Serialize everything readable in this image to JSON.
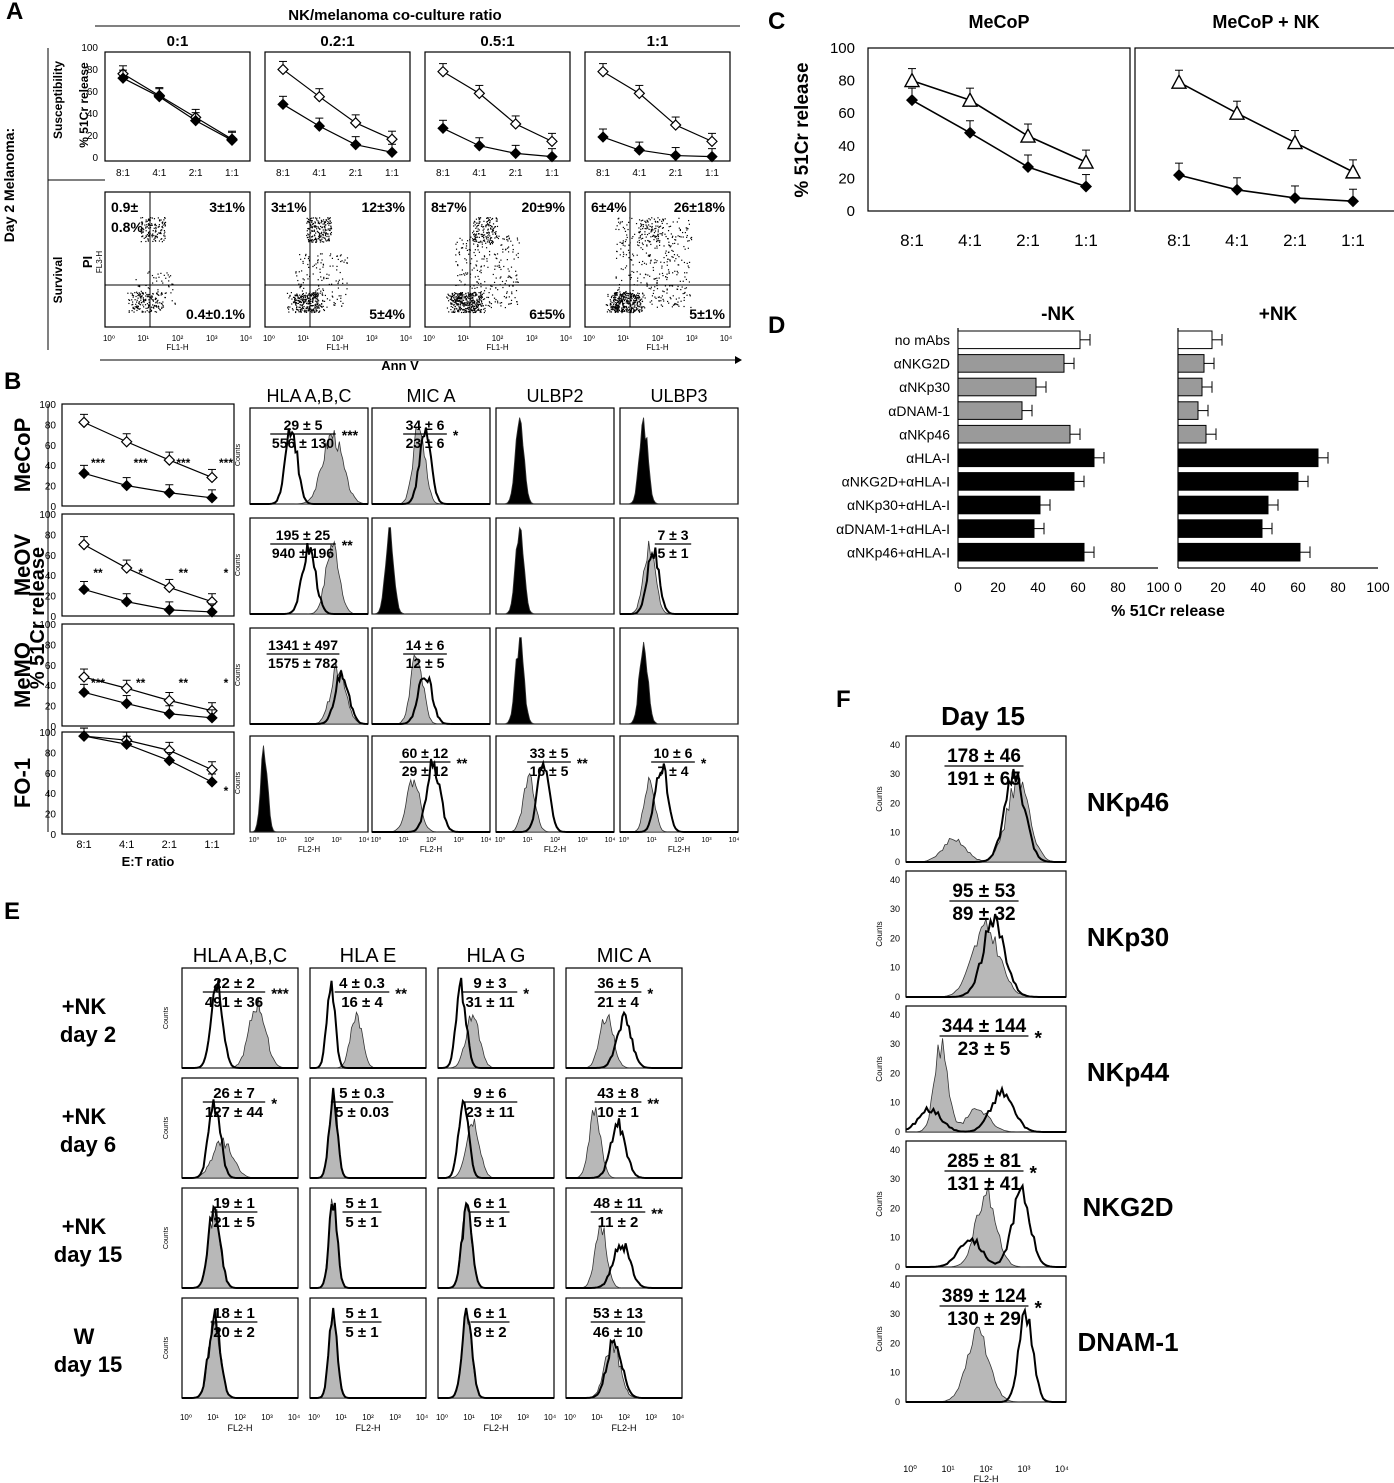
{
  "panel_letters": {
    "A": "A",
    "B": "B",
    "C": "C",
    "D": "D",
    "E": "E",
    "F": "F"
  },
  "panel_a": {
    "header": "NK/melanoma co-culture ratio",
    "ratios": [
      "0:1",
      "0.2:1",
      "0.5:1",
      "1:1"
    ],
    "row_side": "Day 2 Melanoma:",
    "row1_label": "Susceptibility",
    "row2_label": "Survival",
    "ylabel": "% 51Cr release",
    "yticks": [
      "0",
      "20",
      "40",
      "60",
      "80",
      "100"
    ],
    "xticks": [
      "8:1",
      "4:1",
      "2:1",
      "1:1"
    ],
    "flow_ylabel": "PI",
    "flow_ylabel_small": "FL3-H",
    "flow_xlabel_small": "FL1-H",
    "xaxis_title": "Ann V",
    "quadrants": [
      {
        "ul": "0.9±",
        "ul2": "0.8%",
        "ur": "3±1%",
        "lr": "0.4±0.1%"
      },
      {
        "ul": "3±1%",
        "ul2": "",
        "ur": "12±3%",
        "lr": "5±4%"
      },
      {
        "ul": "8±7%",
        "ul2": "",
        "ur": "20±9%",
        "lr": "6±5%"
      },
      {
        "ul": "6±4%",
        "ul2": "",
        "ur": "26±18%",
        "lr": "5±1%"
      }
    ]
  },
  "chart_data": [
    {
      "type": "line",
      "panel": "A",
      "subtitle": "0:1",
      "categories": [
        "8:1",
        "4:1",
        "2:1",
        "1:1"
      ],
      "ylim": [
        0,
        100
      ],
      "series": [
        {
          "values": [
            80,
            60,
            40,
            20
          ]
        },
        {
          "values": [
            76,
            59,
            37,
            19
          ]
        }
      ]
    },
    {
      "type": "line",
      "panel": "A",
      "subtitle": "0.2:1",
      "categories": [
        "8:1",
        "4:1",
        "2:1",
        "1:1"
      ],
      "ylim": [
        0,
        100
      ],
      "series": [
        {
          "values": [
            84,
            59,
            35,
            20
          ]
        },
        {
          "values": [
            52,
            32,
            15,
            8
          ]
        }
      ]
    },
    {
      "type": "line",
      "panel": "A",
      "subtitle": "0.5:1",
      "categories": [
        "8:1",
        "4:1",
        "2:1",
        "1:1"
      ],
      "ylim": [
        0,
        100
      ],
      "series": [
        {
          "values": [
            82,
            62,
            34,
            18
          ]
        },
        {
          "values": [
            30,
            14,
            7,
            4
          ]
        }
      ]
    },
    {
      "type": "line",
      "panel": "A",
      "subtitle": "1:1",
      "categories": [
        "8:1",
        "4:1",
        "2:1",
        "1:1"
      ],
      "ylim": [
        0,
        100
      ],
      "series": [
        {
          "values": [
            82,
            62,
            33,
            18
          ]
        },
        {
          "values": [
            22,
            10,
            5,
            4
          ]
        }
      ]
    },
    {
      "type": "line",
      "panel": "B",
      "subtitle": "MeCoP",
      "categories": [
        "8:1",
        "4:1",
        "2:1",
        "1:1"
      ],
      "ylim": [
        0,
        100
      ],
      "series": [
        {
          "values": [
            82,
            63,
            45,
            28
          ]
        },
        {
          "values": [
            32,
            20,
            13,
            8
          ]
        }
      ]
    },
    {
      "type": "line",
      "panel": "B",
      "subtitle": "MeOV",
      "categories": [
        "8:1",
        "4:1",
        "2:1",
        "1:1"
      ],
      "ylim": [
        0,
        100
      ],
      "series": [
        {
          "values": [
            70,
            47,
            28,
            14
          ]
        },
        {
          "values": [
            26,
            14,
            6,
            4
          ]
        }
      ]
    },
    {
      "type": "line",
      "panel": "B",
      "subtitle": "MeMO",
      "categories": [
        "8:1",
        "4:1",
        "2:1",
        "1:1"
      ],
      "ylim": [
        0,
        100
      ],
      "series": [
        {
          "values": [
            48,
            37,
            25,
            15
          ]
        },
        {
          "values": [
            33,
            22,
            12,
            8
          ]
        }
      ]
    },
    {
      "type": "line",
      "panel": "B",
      "subtitle": "FO-1",
      "categories": [
        "8:1",
        "4:1",
        "2:1",
        "1:1"
      ],
      "ylim": [
        0,
        100
      ],
      "series": [
        {
          "values": [
            96,
            92,
            82,
            63
          ]
        },
        {
          "values": [
            96,
            88,
            72,
            51
          ]
        }
      ]
    },
    {
      "type": "line",
      "panel": "C",
      "title": "MeCoP",
      "categories": [
        "8:1",
        "4:1",
        "2:1",
        "1:1"
      ],
      "ylim": [
        0,
        100
      ],
      "ylabel": "% 51Cr release",
      "series": [
        {
          "values": [
            80,
            68,
            46,
            30
          ]
        },
        {
          "values": [
            68,
            48,
            27,
            15
          ]
        }
      ]
    },
    {
      "type": "line",
      "panel": "C",
      "title": "MeCoP + NK",
      "categories": [
        "8:1",
        "4:1",
        "2:1",
        "1:1"
      ],
      "ylim": [
        0,
        100
      ],
      "series": [
        {
          "values": [
            79,
            60,
            42,
            24
          ]
        },
        {
          "values": [
            22,
            13,
            8,
            6
          ]
        }
      ]
    },
    {
      "type": "bar",
      "panel": "D",
      "title": "-NK",
      "categories": [
        "no mAbs",
        "αNKG2D",
        "αNKp30",
        "αDNAM-1",
        "αNKp46",
        "αHLA-I",
        "αNKG2D+αHLA-I",
        "αNKp30+αHLA-I",
        "αDNAM-1+αHLA-I",
        "αNKp46+αHLA-I"
      ],
      "values": [
        61,
        53,
        39,
        32,
        56,
        68,
        58,
        41,
        38,
        63
      ],
      "xlabel": "% 51Cr release",
      "xlim": [
        0,
        100
      ]
    },
    {
      "type": "bar",
      "panel": "D",
      "title": "+NK",
      "categories": [
        "no mAbs",
        "αNKG2D",
        "αNKp30",
        "αDNAM-1",
        "αNKp46",
        "αHLA-I",
        "αNKG2D+αHLA-I",
        "αNKp30+αHLA-I",
        "αDNAM-1+αHLA-I",
        "αNKp46+αHLA-I"
      ],
      "values": [
        17,
        13,
        12,
        10,
        14,
        70,
        60,
        45,
        42,
        61
      ],
      "xlim": [
        0,
        100
      ]
    }
  ],
  "panel_b": {
    "rows": [
      "MeCoP",
      "MeOV",
      "MeMO",
      "FO-1"
    ],
    "cols": [
      "HLA A,B,C",
      "MIC A",
      "ULBP2",
      "ULBP3"
    ],
    "ylabel": "% 51Cr release",
    "xlabel": "E:T ratio",
    "yticks": [
      "0",
      "20",
      "40",
      "60",
      "80",
      "100"
    ],
    "xticks": [
      "8:1",
      "4:1",
      "2:1",
      "1:1"
    ],
    "stars": [
      [
        "***",
        "***",
        "***",
        "***"
      ],
      [
        "**",
        "*",
        "**",
        "*"
      ],
      [
        "***",
        "**",
        "**",
        "*"
      ],
      [
        "",
        "",
        "",
        "*"
      ]
    ],
    "counts_label": "Counts",
    "fl2_label": "FL2-H",
    "hist": [
      [
        {
          "top": "29 ± 5",
          "bot": "556 ± 130",
          "sig": "***"
        },
        {
          "top": "34 ± 6",
          "bot": "23 ± 6",
          "sig": "*"
        },
        {
          "top": "",
          "bot": "",
          "sig": ""
        },
        {
          "top": "",
          "bot": "",
          "sig": ""
        }
      ],
      [
        {
          "top": "195 ± 25",
          "bot": "940 ± 196",
          "sig": "**"
        },
        {
          "top": "",
          "bot": "",
          "sig": ""
        },
        {
          "top": "",
          "bot": "",
          "sig": ""
        },
        {
          "top": "7 ± 3",
          "bot": "5 ± 1",
          "sig": ""
        }
      ],
      [
        {
          "top": "1341 ± 497",
          "bot": "1575 ± 782",
          "sig": ""
        },
        {
          "top": "14 ± 6",
          "bot": "12 ± 5",
          "sig": ""
        },
        {
          "top": "",
          "bot": "",
          "sig": ""
        },
        {
          "top": "",
          "bot": "",
          "sig": ""
        }
      ],
      [
        {
          "top": "",
          "bot": "",
          "sig": ""
        },
        {
          "top": "60 ± 12",
          "bot": "29 ± 12",
          "sig": "**"
        },
        {
          "top": "33 ± 5",
          "bot": "16 ± 5",
          "sig": "**"
        },
        {
          "top": "10 ± 6",
          "bot": "7 ± 4",
          "sig": "*"
        }
      ]
    ]
  },
  "panel_c": {
    "xticks": [
      "8:1",
      "4:1",
      "2:1",
      "1:1"
    ],
    "yticks": [
      "0",
      "20",
      "40",
      "60",
      "80",
      "100"
    ],
    "ylabel": "% 51Cr release",
    "titles": [
      "MeCoP",
      "MeCoP + NK"
    ]
  },
  "panel_d": {
    "titles": [
      "-NK",
      "+NK"
    ],
    "xticks": [
      "0",
      "20",
      "40",
      "60",
      "80",
      "100"
    ],
    "xlabel": "% 51Cr release",
    "labels": [
      "no mAbs",
      "αNKG2D",
      "αNKp30",
      "αDNAM-1",
      "αNKp46",
      "αHLA-I",
      "αNKG2D+αHLA-I",
      "αNKp30+αHLA-I",
      "αDNAM-1+αHLA-I",
      "αNKp46+αHLA-I"
    ]
  },
  "panel_e": {
    "cols": [
      "HLA A,B,C",
      "HLA E",
      "HLA G",
      "MIC A"
    ],
    "rows": [
      {
        "l1": "+NK",
        "l2": "day 2"
      },
      {
        "l1": "+NK",
        "l2": "day 6"
      },
      {
        "l1": "+NK",
        "l2": "day 15"
      },
      {
        "l1": "W",
        "l2": "day 15"
      }
    ],
    "counts_label": "Counts",
    "fl2_label": "FL2-H",
    "hist": [
      [
        {
          "top": "22 ± 2",
          "bot": "491 ± 36",
          "sig": "***"
        },
        {
          "top": "4 ± 0.3",
          "bot": "16 ± 4",
          "sig": "**"
        },
        {
          "top": "9 ± 3",
          "bot": "31 ± 11",
          "sig": "*"
        },
        {
          "top": "36 ± 5",
          "bot": "21 ± 4",
          "sig": "*"
        }
      ],
      [
        {
          "top": "26 ± 7",
          "bot": "127 ± 44",
          "sig": "*"
        },
        {
          "top": "5 ± 0.3",
          "bot": "5 ± 0.03",
          "sig": ""
        },
        {
          "top": "9 ± 6",
          "bot": "23 ± 11",
          "sig": ""
        },
        {
          "top": "43 ± 8",
          "bot": "10 ± 1",
          "sig": "**"
        }
      ],
      [
        {
          "top": "19 ± 1",
          "bot": "21 ± 5",
          "sig": ""
        },
        {
          "top": "5 ± 1",
          "bot": "5 ± 1",
          "sig": ""
        },
        {
          "top": "6 ± 1",
          "bot": "5 ± 1",
          "sig": ""
        },
        {
          "top": "48 ± 11",
          "bot": "11 ± 2",
          "sig": "**"
        }
      ],
      [
        {
          "top": "18 ± 1",
          "bot": "20 ± 2",
          "sig": ""
        },
        {
          "top": "5 ± 1",
          "bot": "5 ± 1",
          "sig": ""
        },
        {
          "top": "6 ± 1",
          "bot": "8 ± 2",
          "sig": ""
        },
        {
          "top": "53 ± 13",
          "bot": "46 ± 10",
          "sig": ""
        }
      ]
    ]
  },
  "panel_f": {
    "title": "Day 15",
    "counts_label": "Counts",
    "fl2_label": "FL2-H",
    "yticks": [
      "0",
      "10",
      "20",
      "30",
      "40"
    ],
    "rows": [
      {
        "name": "NKp46",
        "top": "178 ± 46",
        "bot": "191 ± 65",
        "sig": ""
      },
      {
        "name": "NKp30",
        "top": "95 ± 53",
        "bot": "89 ± 32",
        "sig": ""
      },
      {
        "name": "NKp44",
        "top": "344 ± 144",
        "bot": "23 ± 5",
        "sig": "*"
      },
      {
        "name": "NKG2D",
        "top": "285 ± 81",
        "bot": "131 ± 41",
        "sig": "*"
      },
      {
        "name": "DNAM-1",
        "top": "389 ± 124",
        "bot": "130 ± 29",
        "sig": "*"
      }
    ]
  },
  "log_ticks": [
    "10⁰",
    "10¹",
    "10²",
    "10³",
    "10⁴"
  ]
}
